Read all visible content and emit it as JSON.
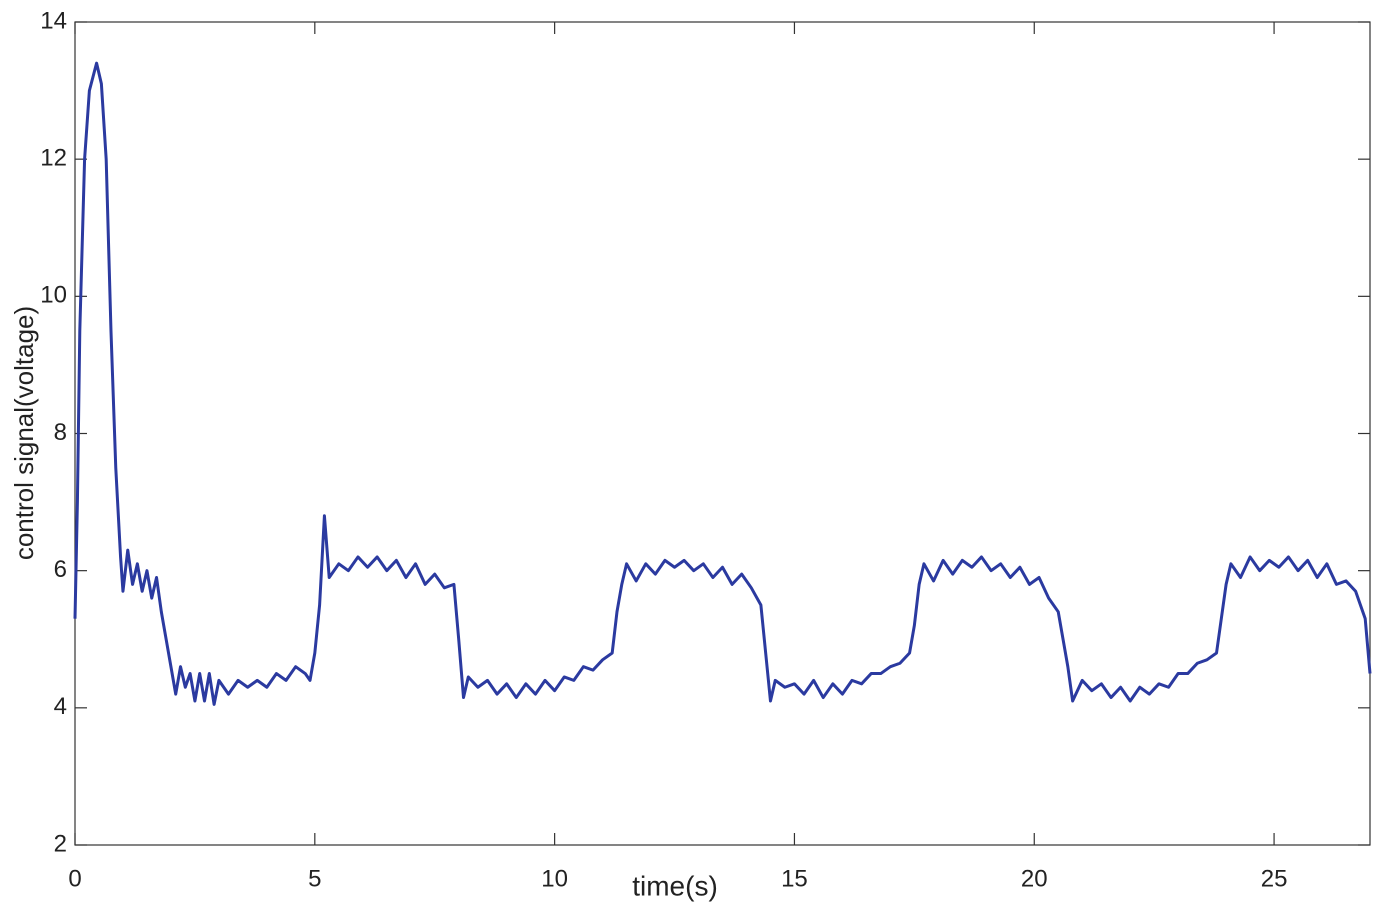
{
  "chart_data": {
    "type": "line",
    "x_label": "time(s)",
    "y_label": "control signal(voltage)",
    "color": "#2b3aa0",
    "x": [
      0,
      0.05,
      0.1,
      0.2,
      0.3,
      0.45,
      0.55,
      0.65,
      0.75,
      0.85,
      0.95,
      1.0,
      1.1,
      1.2,
      1.3,
      1.4,
      1.5,
      1.6,
      1.7,
      1.8,
      1.9,
      2.0,
      2.1,
      2.2,
      2.3,
      2.4,
      2.5,
      2.6,
      2.7,
      2.8,
      2.9,
      3.0,
      3.2,
      3.4,
      3.6,
      3.8,
      4.0,
      4.2,
      4.4,
      4.6,
      4.8,
      4.9,
      5.0,
      5.1,
      5.2,
      5.3,
      5.5,
      5.7,
      5.9,
      6.1,
      6.3,
      6.5,
      6.7,
      6.9,
      7.1,
      7.3,
      7.5,
      7.7,
      7.9,
      8.0,
      8.1,
      8.2,
      8.4,
      8.6,
      8.8,
      9.0,
      9.2,
      9.4,
      9.6,
      9.8,
      10.0,
      10.2,
      10.4,
      10.6,
      10.8,
      11.0,
      11.2,
      11.3,
      11.4,
      11.5,
      11.7,
      11.9,
      12.1,
      12.3,
      12.5,
      12.7,
      12.9,
      13.1,
      13.3,
      13.5,
      13.7,
      13.9,
      14.1,
      14.3,
      14.4,
      14.5,
      14.6,
      14.8,
      15.0,
      15.2,
      15.4,
      15.6,
      15.8,
      16.0,
      16.2,
      16.4,
      16.6,
      16.8,
      17.0,
      17.2,
      17.4,
      17.5,
      17.6,
      17.7,
      17.9,
      18.1,
      18.3,
      18.5,
      18.7,
      18.9,
      19.1,
      19.3,
      19.5,
      19.7,
      19.9,
      20.1,
      20.3,
      20.5,
      20.6,
      20.7,
      20.8,
      21.0,
      21.2,
      21.4,
      21.6,
      21.8,
      22.0,
      22.2,
      22.4,
      22.6,
      22.8,
      23.0,
      23.2,
      23.4,
      23.6,
      23.8,
      23.9,
      24.0,
      24.1,
      24.3,
      24.5,
      24.7,
      24.9,
      25.1,
      25.3,
      25.5,
      25.7,
      25.9,
      26.1,
      26.3,
      26.5,
      26.7,
      26.9,
      27.0
    ],
    "values": [
      5.3,
      7,
      9.5,
      12,
      13,
      13.4,
      13.1,
      12,
      9.5,
      7.5,
      6.2,
      5.7,
      6.3,
      5.8,
      6.1,
      5.7,
      6.0,
      5.6,
      5.9,
      5.4,
      5.0,
      4.6,
      4.2,
      4.6,
      4.3,
      4.5,
      4.1,
      4.5,
      4.1,
      4.5,
      4.05,
      4.4,
      4.2,
      4.4,
      4.3,
      4.4,
      4.3,
      4.5,
      4.4,
      4.6,
      4.5,
      4.4,
      4.8,
      5.5,
      6.8,
      5.9,
      6.1,
      6.0,
      6.2,
      6.05,
      6.2,
      6.0,
      6.15,
      5.9,
      6.1,
      5.8,
      5.95,
      5.75,
      5.8,
      5.0,
      4.15,
      4.45,
      4.3,
      4.4,
      4.2,
      4.35,
      4.15,
      4.35,
      4.2,
      4.4,
      4.25,
      4.45,
      4.4,
      4.6,
      4.55,
      4.7,
      4.8,
      5.4,
      5.8,
      6.1,
      5.85,
      6.1,
      5.95,
      6.15,
      6.05,
      6.15,
      6.0,
      6.1,
      5.9,
      6.05,
      5.8,
      5.95,
      5.75,
      5.5,
      4.8,
      4.1,
      4.4,
      4.3,
      4.35,
      4.2,
      4.4,
      4.15,
      4.35,
      4.2,
      4.4,
      4.35,
      4.5,
      4.5,
      4.6,
      4.65,
      4.8,
      5.2,
      5.8,
      6.1,
      5.85,
      6.15,
      5.95,
      6.15,
      6.05,
      6.2,
      6.0,
      6.1,
      5.9,
      6.05,
      5.8,
      5.9,
      5.6,
      5.4,
      5.0,
      4.6,
      4.1,
      4.4,
      4.25,
      4.35,
      4.15,
      4.3,
      4.1,
      4.3,
      4.2,
      4.35,
      4.3,
      4.5,
      4.5,
      4.65,
      4.7,
      4.8,
      5.3,
      5.8,
      6.1,
      5.9,
      6.2,
      6.0,
      6.15,
      6.05,
      6.2,
      6.0,
      6.15,
      5.9,
      6.1,
      5.8,
      5.85,
      5.7,
      5.3,
      4.5
    ],
    "xlim": [
      0,
      27
    ],
    "xticks": [
      0,
      5,
      10,
      15,
      20,
      25
    ],
    "ylim": [
      2,
      14
    ],
    "yticks": [
      2,
      4,
      6,
      8,
      10,
      12,
      14
    ]
  }
}
